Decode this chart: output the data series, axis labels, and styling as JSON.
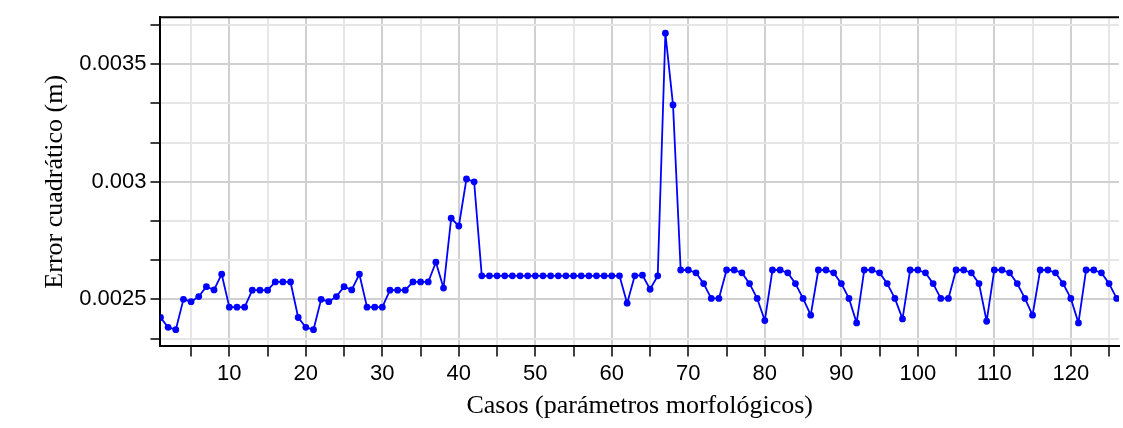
{
  "chart_data": {
    "type": "line",
    "xlabel": "Casos (parámetros morfológicos)",
    "ylabel": "Error cuadrático (m)",
    "x": [
      1,
      2,
      3,
      4,
      5,
      6,
      7,
      8,
      9,
      10,
      11,
      12,
      13,
      14,
      15,
      16,
      17,
      18,
      19,
      20,
      21,
      22,
      23,
      24,
      25,
      26,
      27,
      28,
      29,
      30,
      31,
      32,
      33,
      34,
      35,
      36,
      37,
      38,
      39,
      40,
      41,
      42,
      43,
      44,
      45,
      46,
      47,
      48,
      49,
      50,
      51,
      52,
      53,
      54,
      55,
      56,
      57,
      58,
      59,
      60,
      61,
      62,
      63,
      64,
      65,
      66,
      67,
      68,
      69,
      70,
      71,
      72,
      73,
      74,
      75,
      76,
      77,
      78,
      79,
      80,
      81,
      82,
      83,
      84,
      85,
      86,
      87,
      88,
      89,
      90,
      91,
      92,
      93,
      94,
      95,
      96,
      97,
      98,
      99,
      100,
      101,
      102,
      103,
      104,
      105,
      106,
      107,
      108,
      109,
      110,
      111,
      112,
      113,
      114,
      115,
      116,
      117,
      118,
      119,
      120,
      121,
      122,
      123,
      124,
      125,
      126
    ],
    "series": [
      {
        "color": "#0000ff",
        "values": [
          0.002423,
          0.002381,
          0.002371,
          0.0025,
          0.00249,
          0.002512,
          0.002554,
          0.00254,
          0.002607,
          0.002467,
          0.002467,
          0.002467,
          0.002539,
          0.002539,
          0.002539,
          0.002574,
          0.002574,
          0.002574,
          0.002423,
          0.002381,
          0.002371,
          0.0025,
          0.00249,
          0.002512,
          0.002554,
          0.00254,
          0.002607,
          0.002467,
          0.002467,
          0.002467,
          0.002539,
          0.002539,
          0.002539,
          0.002574,
          0.002574,
          0.002574,
          0.002658,
          0.002548,
          0.002845,
          0.002812,
          0.003012,
          0.003,
          0.0026,
          0.0026,
          0.0026,
          0.0026,
          0.0026,
          0.0026,
          0.0026,
          0.0026,
          0.0026,
          0.0026,
          0.0026,
          0.0026,
          0.0026,
          0.0026,
          0.0026,
          0.0026,
          0.0026,
          0.0026,
          0.0026,
          0.002484,
          0.0026,
          0.002603,
          0.002543,
          0.0026,
          0.003632,
          0.003327,
          0.002625,
          0.002625,
          0.002613,
          0.002567,
          0.002504,
          0.002504,
          0.002625,
          0.002625,
          0.002613,
          0.002567,
          0.002504,
          0.00241,
          0.002625,
          0.002625,
          0.002613,
          0.002567,
          0.002504,
          0.002433,
          0.002625,
          0.002625,
          0.002613,
          0.002567,
          0.002504,
          0.0024,
          0.002625,
          0.002625,
          0.002613,
          0.002567,
          0.002504,
          0.002417,
          0.002625,
          0.002625,
          0.002613,
          0.002567,
          0.002504,
          0.002504,
          0.002625,
          0.002625,
          0.002613,
          0.002567,
          0.002407,
          0.002625,
          0.002625,
          0.002613,
          0.002567,
          0.002504,
          0.002433,
          0.002625,
          0.002625,
          0.002613,
          0.002567,
          0.002504,
          0.0024,
          0.002625,
          0.002625,
          0.002613,
          0.002567,
          0.002504
        ]
      }
    ],
    "xlim": [
      1,
      126.3
    ],
    "xticks": [
      {
        "value": 5,
        "label": null
      },
      10,
      {
        "value": 15,
        "label": null
      },
      20,
      {
        "value": 25,
        "label": null
      },
      30,
      {
        "value": 35,
        "label": null
      },
      40,
      {
        "value": 45,
        "label": null
      },
      50,
      {
        "value": 55,
        "label": null
      },
      60,
      {
        "value": 65,
        "label": null
      },
      70,
      {
        "value": 75,
        "label": null
      },
      80,
      {
        "value": 85,
        "label": null
      },
      90,
      {
        "value": 95,
        "label": null
      },
      100,
      {
        "value": 105,
        "label": null
      },
      110,
      {
        "value": 115,
        "label": null
      },
      120,
      {
        "value": 125,
        "label": null
      }
    ],
    "ylim": [
      0.0023,
      0.0037
    ],
    "yticks": [
      {
        "value": 0.00233333,
        "label": null
      },
      0.0025,
      {
        "value": 0.00266667,
        "label": null
      },
      {
        "value": 0.00283333,
        "label": null
      },
      0.003,
      {
        "value": 0.00316667,
        "label": null
      },
      {
        "value": 0.00333333,
        "label": null
      },
      0.0035,
      {
        "value": 0.00366667,
        "label": null
      }
    ],
    "grid": true,
    "marker": "circle",
    "line_style": "solid",
    "legend": false
  }
}
